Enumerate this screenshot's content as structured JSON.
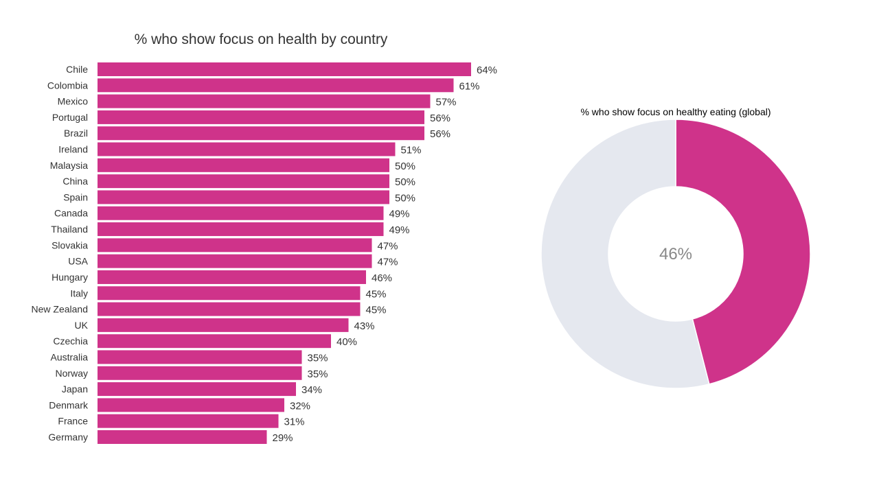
{
  "chart_data": [
    {
      "type": "bar",
      "orientation": "horizontal",
      "title": "% who show focus on health by country",
      "categories": [
        "Chile",
        "Colombia",
        "Mexico",
        "Portugal",
        "Brazil",
        "Ireland",
        "Malaysia",
        "China",
        "Spain",
        "Canada",
        "Thailand",
        "Slovakia",
        "USA",
        "Hungary",
        "Italy",
        "New Zealand",
        "UK",
        "Czechia",
        "Australia",
        "Norway",
        "Japan",
        "Denmark",
        "France",
        "Germany"
      ],
      "values": [
        64,
        61,
        57,
        56,
        56,
        51,
        50,
        50,
        50,
        49,
        49,
        47,
        47,
        46,
        45,
        45,
        43,
        40,
        35,
        35,
        34,
        32,
        31,
        29
      ],
      "value_suffix": "%",
      "xlim": [
        0,
        64
      ],
      "grid": false,
      "color": "#CF338A"
    },
    {
      "type": "pie",
      "variant": "donut",
      "title": "% who show focus on healthy eating (global)",
      "values": [
        46,
        54
      ],
      "center_label": "46%",
      "colors": [
        "#CF338A",
        "#E5E8EF"
      ]
    }
  ]
}
